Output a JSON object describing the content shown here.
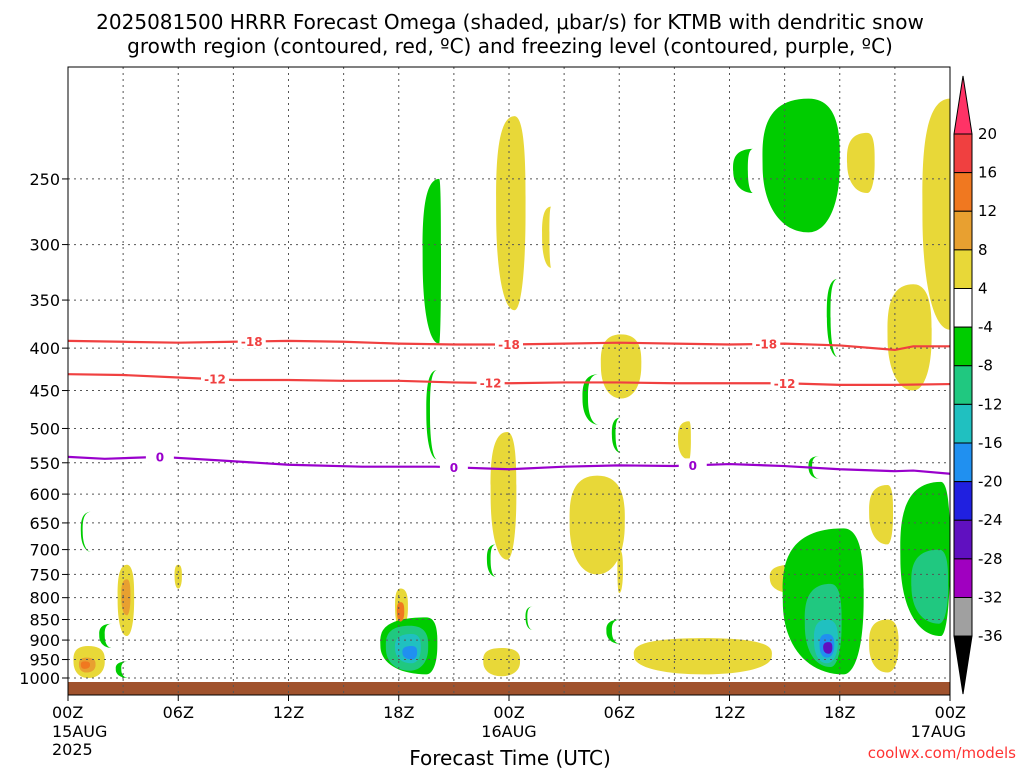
{
  "chart_data": {
    "type": "heatmap",
    "title_line1": "2025081500 HRRR Forecast Omega (shaded, μbar/s) for KTMB with dendritic snow",
    "title_line2": "growth region (contoured, red, ºC) and freezing level (contoured, purple, ºC)",
    "xlabel": "Forecast Time (UTC)",
    "credit": "coolwx.com/models",
    "x_hours_range": [
      0,
      48
    ],
    "y_hpa_range": [
      1000,
      200
    ],
    "y_scale": "log",
    "grid": true,
    "x_ticks": [
      {
        "hour": 0,
        "label": "00Z",
        "sub": "15AUG",
        "sub2": "2025"
      },
      {
        "hour": 6,
        "label": "06Z",
        "sub": "",
        "sub2": ""
      },
      {
        "hour": 12,
        "label": "12Z",
        "sub": "",
        "sub2": ""
      },
      {
        "hour": 18,
        "label": "18Z",
        "sub": "",
        "sub2": ""
      },
      {
        "hour": 24,
        "label": "00Z",
        "sub": "16AUG",
        "sub2": ""
      },
      {
        "hour": 30,
        "label": "06Z",
        "sub": "",
        "sub2": ""
      },
      {
        "hour": 36,
        "label": "12Z",
        "sub": "",
        "sub2": ""
      },
      {
        "hour": 42,
        "label": "18Z",
        "sub": "",
        "sub2": ""
      },
      {
        "hour": 48,
        "label": "00Z",
        "sub": "17AUG",
        "sub2": ""
      }
    ],
    "y_ticks": [
      "250",
      "300",
      "350",
      "400",
      "450",
      "500",
      "550",
      "600",
      "650",
      "700",
      "750",
      "800",
      "850",
      "900",
      "950",
      "1000"
    ],
    "colorbar": {
      "labels": [
        "20",
        "16",
        "12",
        "8",
        "4",
        "-4",
        "-8",
        "-12",
        "-16",
        "-20",
        "-24",
        "-28",
        "-32",
        "-36"
      ],
      "colors": [
        "#ff3366",
        "#f04040",
        "#f07820",
        "#e8a030",
        "#e8d838",
        "#ffffff",
        "#00cc00",
        "#20c880",
        "#20c0c0",
        "#2090f0",
        "#2020e0",
        "#6010c0",
        "#a000c0",
        "#a0a0a0",
        "#000000"
      ]
    },
    "contours": [
      {
        "name": "-18",
        "color": "#f04040",
        "label_hours": [
          10,
          24,
          38
        ],
        "points": [
          [
            0,
            392
          ],
          [
            3,
            393
          ],
          [
            6,
            394
          ],
          [
            9,
            393
          ],
          [
            12,
            392
          ],
          [
            15,
            393
          ],
          [
            18,
            395
          ],
          [
            21,
            396
          ],
          [
            24,
            396
          ],
          [
            27,
            395
          ],
          [
            30,
            394
          ],
          [
            33,
            395
          ],
          [
            36,
            396
          ],
          [
            39,
            395
          ],
          [
            42,
            397
          ],
          [
            45,
            402
          ],
          [
            46,
            398
          ],
          [
            48,
            398
          ]
        ]
      },
      {
        "name": "-12",
        "color": "#f04040",
        "label_hours": [
          8,
          23,
          39
        ],
        "points": [
          [
            0,
            430
          ],
          [
            3,
            431
          ],
          [
            6,
            434
          ],
          [
            9,
            437
          ],
          [
            12,
            437
          ],
          [
            15,
            438
          ],
          [
            18,
            438
          ],
          [
            21,
            440
          ],
          [
            24,
            441
          ],
          [
            27,
            440
          ],
          [
            30,
            440
          ],
          [
            33,
            441
          ],
          [
            36,
            441
          ],
          [
            39,
            441
          ],
          [
            42,
            443
          ],
          [
            45,
            443
          ],
          [
            48,
            442
          ]
        ]
      },
      {
        "name": "0",
        "color": "#9900cc",
        "label_hours": [
          5,
          21,
          34
        ],
        "points": [
          [
            0,
            541
          ],
          [
            2,
            544
          ],
          [
            5,
            541
          ],
          [
            8,
            546
          ],
          [
            12,
            553
          ],
          [
            16,
            556
          ],
          [
            20,
            556
          ],
          [
            24,
            560
          ],
          [
            27,
            556
          ],
          [
            30,
            554
          ],
          [
            33,
            555
          ],
          [
            36,
            552
          ],
          [
            39,
            555
          ],
          [
            42,
            560
          ],
          [
            45,
            563
          ],
          [
            46,
            562
          ],
          [
            48,
            567
          ]
        ]
      }
    ],
    "regions": [
      {
        "v": -8,
        "hrs": [
          3.0,
          3.6,
          3.0
        ],
        "p": [
          220,
          308
        ]
      },
      {
        "v": -8,
        "hrs": [
          1.9,
          2.4,
          1.9
        ],
        "p": [
          330,
          495
        ]
      },
      {
        "v": -8,
        "hrs": [
          3.0,
          3.5,
          3.0
        ],
        "p": [
          540,
          655
        ]
      },
      {
        "v": -8,
        "hrs": [
          0.7,
          1.3,
          0.8
        ],
        "p": [
          630,
          705
        ]
      },
      {
        "v": -8,
        "hrs": [
          1.7,
          2.4,
          2.0
        ],
        "p": [
          860,
          920
        ]
      },
      {
        "v": -8,
        "hrs": [
          2.6,
          3.3,
          2.9
        ],
        "p": [
          955,
          1000
        ]
      },
      {
        "v": -8,
        "hrs": [
          19.3,
          20.2,
          20.3
        ],
        "p": [
          250,
          395
        ]
      },
      {
        "v": -8,
        "hrs": [
          19.5,
          20.1,
          19.7
        ],
        "p": [
          425,
          545
        ]
      },
      {
        "v": -8,
        "hrs": [
          22.8,
          23.3,
          23.0
        ],
        "p": [
          690,
          755
        ]
      },
      {
        "v": -8,
        "hrs": [
          28.0,
          28.9,
          28.3
        ],
        "p": [
          430,
          495
        ]
      },
      {
        "v": -8,
        "hrs": [
          29.6,
          30.1,
          29.8
        ],
        "p": [
          485,
          535
        ]
      },
      {
        "v": -8,
        "hrs": [
          29.3,
          30.1,
          29.6
        ],
        "p": [
          850,
          910
        ]
      },
      {
        "v": -8,
        "hrs": [
          24.9,
          25.3,
          25.0
        ],
        "p": [
          820,
          875
        ]
      },
      {
        "v": -8,
        "hrs": [
          37.8,
          40.3,
          42.0
        ],
        "p": [
          200,
          290
        ]
      },
      {
        "v": -8,
        "hrs": [
          36.2,
          37.3,
          37.0
        ],
        "p": [
          230,
          260
        ]
      },
      {
        "v": -8,
        "hrs": [
          41.3,
          41.9,
          41.5
        ],
        "p": [
          330,
          410
        ]
      },
      {
        "v": -8,
        "hrs": [
          40.3,
          40.9,
          40.5
        ],
        "p": [
          540,
          575
        ]
      },
      {
        "v": -8,
        "hrs": [
          38.9,
          42.2,
          43.3
        ],
        "p": [
          660,
          990
        ]
      },
      {
        "v": -8,
        "hrs": [
          45.3,
          47.5,
          48.0
        ],
        "p": [
          580,
          890
        ]
      },
      {
        "v": -8,
        "hrs": [
          17.0,
          19.5,
          20.1
        ],
        "p": [
          845,
          990
        ]
      },
      {
        "v": -12,
        "hrs": [
          45.9,
          47.4,
          47.9
        ],
        "p": [
          700,
          860
        ]
      },
      {
        "v": -12,
        "hrs": [
          17.3,
          18.6,
          19.6
        ],
        "p": [
          865,
          980
        ]
      },
      {
        "v": -12,
        "hrs": [
          40.1,
          41.5,
          42.1
        ],
        "p": [
          770,
          970
        ]
      },
      {
        "v": -16,
        "hrs": [
          17.8,
          18.7,
          19.2
        ],
        "p": [
          885,
          960
        ]
      },
      {
        "v": -16,
        "hrs": [
          40.6,
          41.3,
          41.9
        ],
        "p": [
          850,
          960
        ]
      },
      {
        "v": -20,
        "hrs": [
          18.2,
          18.7,
          19.0
        ],
        "p": [
          915,
          950
        ]
      },
      {
        "v": -20,
        "hrs": [
          40.9,
          41.3,
          41.7
        ],
        "p": [
          885,
          945
        ]
      },
      {
        "v": -28,
        "hrs": [
          41.1,
          41.4,
          41.6
        ],
        "p": [
          905,
          935
        ]
      },
      {
        "v": 4,
        "hrs": [
          23.3,
          24.3,
          24.9
        ],
        "p": [
          210,
          360
        ]
      },
      {
        "v": 4,
        "hrs": [
          25.8,
          26.3,
          26.2
        ],
        "p": [
          270,
          320
        ]
      },
      {
        "v": 4,
        "hrs": [
          29.0,
          30.1,
          31.2
        ],
        "p": [
          385,
          460
        ]
      },
      {
        "v": 4,
        "hrs": [
          23.0,
          23.9,
          24.4
        ],
        "p": [
          505,
          720
        ]
      },
      {
        "v": 4,
        "hrs": [
          27.3,
          28.8,
          30.3
        ],
        "p": [
          570,
          750
        ]
      },
      {
        "v": 4,
        "hrs": [
          33.2,
          33.8,
          33.9
        ],
        "p": [
          490,
          545
        ]
      },
      {
        "v": 4,
        "hrs": [
          42.4,
          43.5,
          43.9
        ],
        "p": [
          220,
          260
        ]
      },
      {
        "v": 4,
        "hrs": [
          44.6,
          46.0,
          47.0
        ],
        "p": [
          335,
          450
        ]
      },
      {
        "v": 4,
        "hrs": [
          46.5,
          48.0,
          48.0
        ],
        "p": [
          200,
          380
        ]
      },
      {
        "v": 4,
        "hrs": [
          43.6,
          44.6,
          44.9
        ],
        "p": [
          585,
          690
        ]
      },
      {
        "v": 4,
        "hrs": [
          43.6,
          44.6,
          45.2
        ],
        "p": [
          850,
          985
        ]
      },
      {
        "v": 4,
        "hrs": [
          38.2,
          39.4,
          40.3
        ],
        "p": [
          730,
          790
        ]
      },
      {
        "v": 4,
        "hrs": [
          22.6,
          23.6,
          24.6
        ],
        "p": [
          920,
          995
        ]
      },
      {
        "v": 4,
        "hrs": [
          30.8,
          34.6,
          38.3
        ],
        "p": [
          895,
          990
        ]
      },
      {
        "v": 4,
        "hrs": [
          29.9,
          30.0,
          30.2
        ],
        "p": [
          700,
          790
        ]
      },
      {
        "v": 4,
        "hrs": [
          5.8,
          6.0,
          6.2
        ],
        "p": [
          730,
          780
        ]
      },
      {
        "v": 4,
        "hrs": [
          17.8,
          18.1,
          18.5
        ],
        "p": [
          780,
          870
        ]
      },
      {
        "v": 4,
        "hrs": [
          2.7,
          3.2,
          3.6
        ],
        "p": [
          730,
          890
        ]
      },
      {
        "v": 4,
        "hrs": [
          0.3,
          1.1,
          2.0
        ],
        "p": [
          915,
          1000
        ]
      },
      {
        "v": 8,
        "hrs": [
          2.9,
          3.2,
          3.4
        ],
        "p": [
          760,
          840
        ]
      },
      {
        "v": 8,
        "hrs": [
          0.6,
          1.0,
          1.5
        ],
        "p": [
          945,
          985
        ]
      },
      {
        "v": 12,
        "hrs": [
          17.9,
          18.1,
          18.3
        ],
        "p": [
          810,
          855
        ]
      },
      {
        "v": 12,
        "hrs": [
          0.7,
          0.9,
          1.2
        ],
        "p": [
          955,
          975
        ]
      }
    ]
  }
}
